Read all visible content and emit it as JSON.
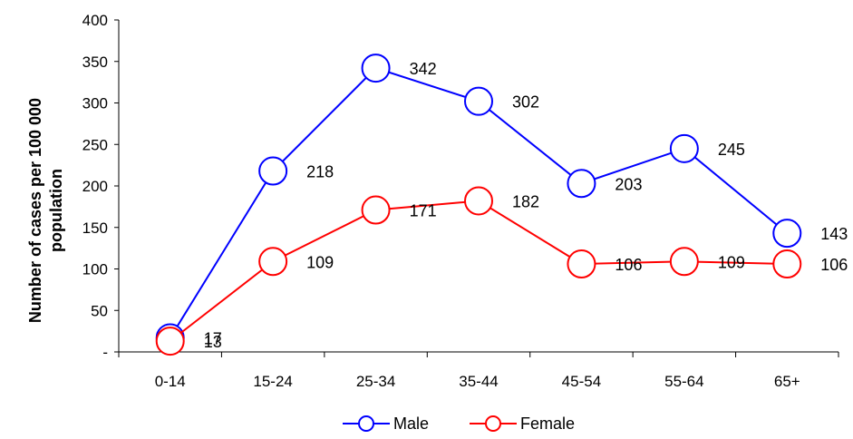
{
  "chart_data": {
    "type": "line",
    "categories": [
      "0-14",
      "15-24",
      "25-34",
      "35-44",
      "45-54",
      "55-64",
      "65+"
    ],
    "series": [
      {
        "name": "Male",
        "color": "#0000FF",
        "values": [
          17,
          218,
          342,
          302,
          203,
          245,
          143
        ]
      },
      {
        "name": "Female",
        "color": "#FF0000",
        "values": [
          13,
          109,
          171,
          182,
          106,
          109,
          106
        ]
      }
    ],
    "ylabel_lines": [
      "Number of cases per 100 000",
      "population"
    ],
    "ylim": [
      0,
      400
    ],
    "yticks": [
      "-",
      "50",
      "100",
      "150",
      "200",
      "250",
      "300",
      "350",
      "400"
    ],
    "ytick_values": [
      0,
      50,
      100,
      150,
      200,
      250,
      300,
      350,
      400
    ],
    "grid": false,
    "legend": "bottom"
  }
}
